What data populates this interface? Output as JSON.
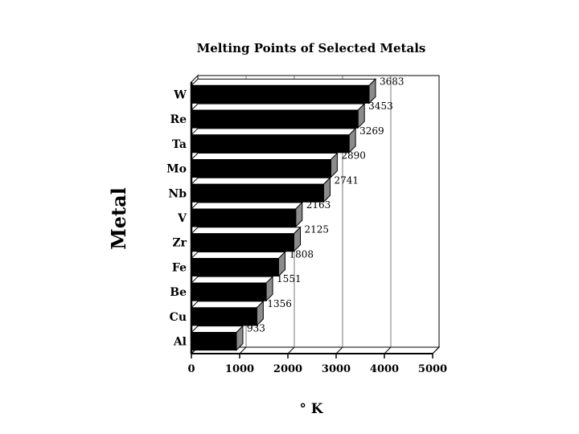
{
  "chart_data": {
    "type": "bar",
    "orientation": "horizontal",
    "style": "3d",
    "title": "Melting Points of Selected Metals",
    "xlabel": "° K",
    "ylabel": "Metal",
    "categories": [
      "W",
      "Re",
      "Ta",
      "Mo",
      "Nb",
      "V",
      "Zr",
      "Fe",
      "Be",
      "Cu",
      "Al"
    ],
    "values": [
      3683,
      3453,
      3269,
      2890,
      2741,
      2163,
      2125,
      1808,
      1551,
      1356,
      933
    ],
    "value_labels": [
      "3683",
      "3453",
      "3269",
      "2890",
      "2741",
      "2163",
      "2125",
      "1808",
      "1551",
      "1356",
      "933"
    ],
    "xlim": [
      0,
      5000
    ],
    "xticks": [
      "0",
      "1000",
      "2000",
      "3000",
      "4000",
      "5000"
    ],
    "grid": true,
    "legend": "none",
    "colors": {
      "bar_face": "#000000",
      "bar_side": "#8c8c8c",
      "grid": "#555555"
    }
  }
}
